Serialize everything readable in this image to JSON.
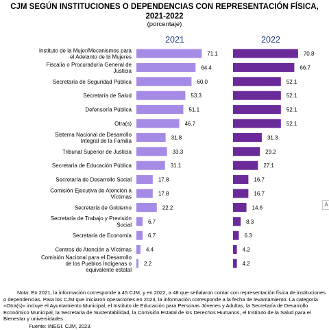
{
  "title": {
    "line1": "CJM SEGÚN INSTITUCIONES O DEPENDENCIAS CON REPRESENTACIÓN FÍSICA,",
    "line2": "2021-2022"
  },
  "subtitle": "(porcentaje)",
  "chart_data": {
    "type": "bar",
    "orientation": "horizontal",
    "categories": [
      [
        "Instituto de la Mujer/Mecanismos para",
        "el Adelanto de la Mujeres"
      ],
      [
        "Fiscalía o Procuraduría General de",
        "Justicia"
      ],
      [
        "Secretaría de Seguridad Pública"
      ],
      [
        "Secretaría de Salud"
      ],
      [
        "Defensoría Pública"
      ],
      [
        "Otra(s)"
      ],
      [
        "Sistema Nacional de Desarrollo",
        "Integral de la Familia"
      ],
      [
        "Tribunal Superior de Justicia"
      ],
      [
        "Secretaría de Educación Pública"
      ],
      [
        "Secretaría de Desarrollo Social"
      ],
      [
        "Comisión Ejecutiva de Atención a",
        "Víctimas"
      ],
      [
        "Secretaría de Gobierno"
      ],
      [
        "Secretaría de Trabajo y Previsión",
        "Social"
      ],
      [
        "Secretaría de Economía"
      ],
      [
        "Centros de Atención a Víctimas"
      ],
      [
        "Comisión Nacional para el Desarrollo",
        "de los Pueblos Indígenas o",
        "equivalente estatal"
      ]
    ],
    "series": [
      {
        "name": "2021",
        "color": "#a68be6",
        "values": [
          71.1,
          64.4,
          60.0,
          53.3,
          51.1,
          46.7,
          31.8,
          33.3,
          31.1,
          17.8,
          17.8,
          22.2,
          6.7,
          6.7,
          4.4,
          2.2
        ],
        "labels": [
          "71.1",
          "64.4",
          "60.0",
          "53.3",
          "51.1",
          "46.7",
          "31.8",
          "33.3",
          "31.1",
          "17.8",
          "17.8",
          "22.2",
          "6.7",
          "6.7",
          "4.4",
          "2.2"
        ]
      },
      {
        "name": "2022",
        "color": "#6a2a9a",
        "values": [
          70.8,
          66.7,
          52.1,
          52.1,
          52.1,
          52.1,
          31.3,
          29.2,
          27.1,
          16.7,
          16.7,
          14.6,
          8.3,
          6.3,
          4.2,
          4.2
        ],
        "labels": [
          "70.8",
          "66.7",
          "52.1",
          "52.1",
          "52.1",
          "52.1",
          "31.3",
          "29.2",
          "27.1",
          "16.7",
          "16.7",
          "14.6",
          "8.3",
          "6.3",
          "4.2",
          "4.2"
        ]
      }
    ],
    "grid": false,
    "legend": "none"
  },
  "note": "Nota: En 2021, la información corresponde a 45 CJM, y en 2022, a 48 que señalaron contar con representación física de instituciones o dependencias. Para los CJM que iniciaron operaciones en 2023, la información corresponde a la fecha de levantamiento. La categoría «Otra(s)» incluye el Ayuntamiento Municipal, el Instituto de Educación para Personas Jóvenes y Adultas, la Secretaría de Desarrollo Económico Municipal, la Secretaría de Sustentabilidad, la Comisión Estatal de los Derechos Humanos, el Instituto de la Salud para el Bienestar y universidades.",
  "source": "Fuente: INEGI. CJM, 2023."
}
